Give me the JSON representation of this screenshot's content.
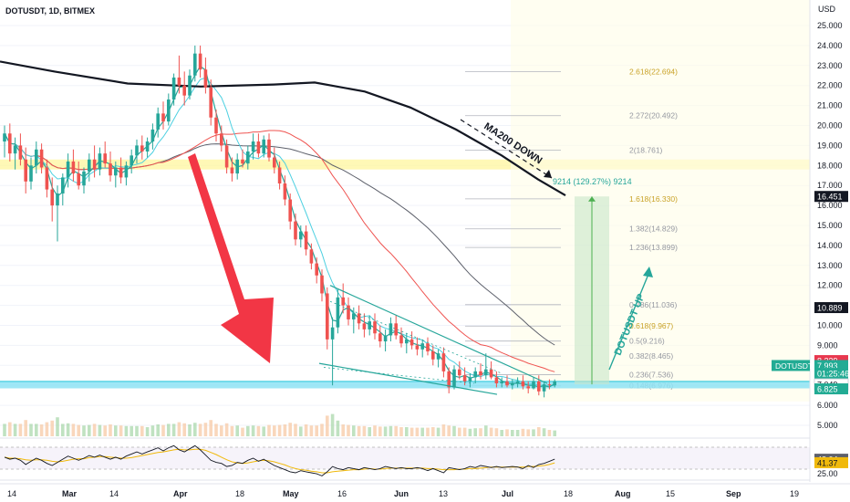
{
  "header": {
    "symbol_label": "DOTUSDT, 1D, BITMEX"
  },
  "chart_data": {
    "type": "candlestick",
    "symbol": "DOTUSDT",
    "timeframe": "1D",
    "exchange": "BITMEX",
    "currency": "USD",
    "price_axis": {
      "ticks": [
        25,
        24,
        23,
        22,
        21,
        20,
        19,
        18,
        17,
        16,
        15,
        14,
        13,
        12,
        11,
        10,
        9,
        8,
        7,
        6,
        5
      ],
      "tick_labels": [
        "25.000",
        "24.000",
        "23.000",
        "22.000",
        "21.000",
        "20.000",
        "19.000",
        "18.000",
        "17.000",
        "16.000",
        "15.000",
        "14.000",
        "13.000",
        "12.000",
        "11.000",
        "10.000",
        "9.000",
        "8.000",
        "7.000",
        "6.000",
        "5.000"
      ],
      "ylim": [
        4.5,
        25.8
      ]
    },
    "time_axis": {
      "tick_labels": [
        "14",
        "Mar",
        "14",
        "Apr",
        "18",
        "May",
        "16",
        "Jun",
        "13",
        "Jul",
        "18",
        "Aug",
        "15",
        "Sep",
        "19"
      ]
    },
    "price_badges": [
      {
        "text": "16.451",
        "value": 16.451,
        "color": "#131722"
      },
      {
        "text": "10.889",
        "value": 10.889,
        "color": "#131722"
      },
      {
        "text": "8.239",
        "value": 8.239,
        "color": "#e8384f"
      },
      {
        "text": "7.993",
        "value": 7.993,
        "color": "#22ab94",
        "prefix": "DOTUSDT"
      },
      {
        "text": "01:25:46",
        "value": 7.6,
        "color": "#22ab94"
      },
      {
        "text": "7.049",
        "value": 7.049,
        "color": "#ffffff",
        "text_color": "#131722"
      },
      {
        "text": "6.825",
        "value": 6.825,
        "color": "#22ab94"
      }
    ],
    "fibonacci_levels": [
      {
        "ratio": "2.618",
        "price": "22.694",
        "value": 22.694
      },
      {
        "ratio": "2.272",
        "price": "20.492",
        "value": 20.492
      },
      {
        "ratio": "2",
        "price": "18.761",
        "value": 18.761
      },
      {
        "ratio": "1.618",
        "price": "16.330",
        "value": 16.33
      },
      {
        "ratio": "1.382",
        "price": "14.829",
        "value": 14.829
      },
      {
        "ratio": "1.236",
        "price": "13.899",
        "value": 13.899
      },
      {
        "ratio": "0.786",
        "price": "11.036",
        "value": 11.036
      },
      {
        "ratio": "0.618",
        "price": "9.967",
        "value": 9.967
      },
      {
        "ratio": "0.5",
        "price": "9.216",
        "value": 9.216
      },
      {
        "ratio": "0.382",
        "price": "8.465",
        "value": 8.465
      },
      {
        "ratio": "0.236",
        "price": "7.536",
        "value": 7.536
      },
      {
        "ratio": "0.148",
        "price": "6.976",
        "value": 6.976
      }
    ],
    "fib_label_texts": [
      "2.618(22.694)",
      "2.272(20.492)",
      "2(18.761)",
      "1.618(16.330)",
      "1.382(14.829)",
      "1.236(13.899)",
      "0.786(11.036)",
      "0.618(9.967)",
      "0.5(9.216)",
      "0.382(8.465)",
      "0.236(7.536)",
      "0.148(6.976)"
    ],
    "annotations": {
      "ma200": "MA200 DOWN",
      "dot_up": "DOTUSDT UP",
      "measure": "9214 (129.27%) 9214"
    },
    "candles": [
      {
        "o": 19.2,
        "h": 20.0,
        "l": 18.4,
        "c": 19.6
      },
      {
        "o": 19.6,
        "h": 20.1,
        "l": 18.2,
        "c": 18.6
      },
      {
        "o": 18.6,
        "h": 19.4,
        "l": 17.8,
        "c": 19.0
      },
      {
        "o": 19.0,
        "h": 19.6,
        "l": 18.0,
        "c": 18.3
      },
      {
        "o": 18.3,
        "h": 18.9,
        "l": 16.6,
        "c": 17.2
      },
      {
        "o": 17.2,
        "h": 18.4,
        "l": 16.8,
        "c": 18.0
      },
      {
        "o": 18.0,
        "h": 19.2,
        "l": 17.6,
        "c": 18.8
      },
      {
        "o": 18.8,
        "h": 19.1,
        "l": 17.6,
        "c": 17.9
      },
      {
        "o": 17.9,
        "h": 18.3,
        "l": 16.4,
        "c": 16.8
      },
      {
        "o": 16.8,
        "h": 17.4,
        "l": 15.2,
        "c": 16.0
      },
      {
        "o": 16.0,
        "h": 17.0,
        "l": 14.2,
        "c": 16.6
      },
      {
        "o": 16.6,
        "h": 17.6,
        "l": 16.0,
        "c": 17.4
      },
      {
        "o": 17.4,
        "h": 18.6,
        "l": 16.9,
        "c": 18.2
      },
      {
        "o": 18.2,
        "h": 18.8,
        "l": 17.2,
        "c": 17.6
      },
      {
        "o": 17.6,
        "h": 18.2,
        "l": 16.8,
        "c": 17.0
      },
      {
        "o": 17.0,
        "h": 17.9,
        "l": 16.6,
        "c": 17.7
      },
      {
        "o": 17.7,
        "h": 18.6,
        "l": 17.2,
        "c": 18.3
      },
      {
        "o": 18.3,
        "h": 19.0,
        "l": 17.4,
        "c": 17.8
      },
      {
        "o": 17.8,
        "h": 18.9,
        "l": 17.5,
        "c": 18.6
      },
      {
        "o": 18.6,
        "h": 19.2,
        "l": 17.9,
        "c": 18.1
      },
      {
        "o": 18.1,
        "h": 18.7,
        "l": 17.2,
        "c": 17.5
      },
      {
        "o": 17.5,
        "h": 18.2,
        "l": 16.9,
        "c": 17.9
      },
      {
        "o": 17.9,
        "h": 18.4,
        "l": 17.1,
        "c": 17.4
      },
      {
        "o": 17.4,
        "h": 18.2,
        "l": 17.0,
        "c": 18.0
      },
      {
        "o": 18.0,
        "h": 18.8,
        "l": 17.6,
        "c": 18.5
      },
      {
        "o": 18.5,
        "h": 19.3,
        "l": 18.1,
        "c": 19.0
      },
      {
        "o": 19.0,
        "h": 19.5,
        "l": 18.3,
        "c": 18.7
      },
      {
        "o": 18.7,
        "h": 19.4,
        "l": 18.4,
        "c": 19.2
      },
      {
        "o": 19.2,
        "h": 20.1,
        "l": 18.8,
        "c": 19.8
      },
      {
        "o": 19.8,
        "h": 20.9,
        "l": 19.4,
        "c": 20.6
      },
      {
        "o": 20.6,
        "h": 21.2,
        "l": 19.8,
        "c": 20.2
      },
      {
        "o": 20.2,
        "h": 21.6,
        "l": 20.0,
        "c": 21.3
      },
      {
        "o": 21.3,
        "h": 22.6,
        "l": 21.0,
        "c": 22.4
      },
      {
        "o": 22.4,
        "h": 23.5,
        "l": 21.6,
        "c": 22.0
      },
      {
        "o": 22.0,
        "h": 22.7,
        "l": 21.0,
        "c": 21.5
      },
      {
        "o": 21.5,
        "h": 22.8,
        "l": 21.3,
        "c": 22.5
      },
      {
        "o": 22.5,
        "h": 24.0,
        "l": 22.2,
        "c": 23.6
      },
      {
        "o": 23.6,
        "h": 24.0,
        "l": 22.4,
        "c": 22.8
      },
      {
        "o": 22.8,
        "h": 23.4,
        "l": 21.6,
        "c": 21.9
      },
      {
        "o": 21.9,
        "h": 22.3,
        "l": 20.0,
        "c": 20.4
      },
      {
        "o": 20.4,
        "h": 20.8,
        "l": 19.2,
        "c": 19.6
      },
      {
        "o": 19.6,
        "h": 20.0,
        "l": 18.7,
        "c": 19.0
      },
      {
        "o": 19.0,
        "h": 19.3,
        "l": 17.6,
        "c": 17.9
      },
      {
        "o": 17.9,
        "h": 18.4,
        "l": 17.2,
        "c": 17.6
      },
      {
        "o": 17.6,
        "h": 18.6,
        "l": 17.3,
        "c": 18.3
      },
      {
        "o": 18.3,
        "h": 18.8,
        "l": 17.9,
        "c": 18.1
      },
      {
        "o": 18.1,
        "h": 19.0,
        "l": 17.8,
        "c": 18.7
      },
      {
        "o": 18.7,
        "h": 19.6,
        "l": 18.3,
        "c": 19.2
      },
      {
        "o": 19.2,
        "h": 19.6,
        "l": 18.4,
        "c": 18.6
      },
      {
        "o": 18.6,
        "h": 19.5,
        "l": 18.4,
        "c": 19.3
      },
      {
        "o": 19.3,
        "h": 19.6,
        "l": 18.2,
        "c": 18.4
      },
      {
        "o": 18.4,
        "h": 18.9,
        "l": 17.6,
        "c": 17.9
      },
      {
        "o": 17.9,
        "h": 18.2,
        "l": 16.8,
        "c": 17.1
      },
      {
        "o": 17.1,
        "h": 17.5,
        "l": 16.0,
        "c": 16.3
      },
      {
        "o": 16.3,
        "h": 16.6,
        "l": 14.8,
        "c": 15.2
      },
      {
        "o": 15.2,
        "h": 15.6,
        "l": 14.0,
        "c": 14.3
      },
      {
        "o": 14.3,
        "h": 15.0,
        "l": 13.9,
        "c": 14.7
      },
      {
        "o": 14.7,
        "h": 15.0,
        "l": 13.5,
        "c": 13.8
      },
      {
        "o": 13.8,
        "h": 14.1,
        "l": 12.8,
        "c": 13.1
      },
      {
        "o": 13.1,
        "h": 13.4,
        "l": 12.1,
        "c": 12.5
      },
      {
        "o": 12.5,
        "h": 12.8,
        "l": 11.2,
        "c": 11.6
      },
      {
        "o": 11.6,
        "h": 11.9,
        "l": 8.8,
        "c": 9.3
      },
      {
        "o": 9.3,
        "h": 10.4,
        "l": 7.0,
        "c": 9.9
      },
      {
        "o": 9.9,
        "h": 11.8,
        "l": 9.6,
        "c": 11.4
      },
      {
        "o": 11.4,
        "h": 12.1,
        "l": 10.6,
        "c": 11.0
      },
      {
        "o": 11.0,
        "h": 11.4,
        "l": 10.0,
        "c": 10.3
      },
      {
        "o": 10.3,
        "h": 10.9,
        "l": 9.6,
        "c": 10.6
      },
      {
        "o": 10.6,
        "h": 11.0,
        "l": 9.8,
        "c": 10.1
      },
      {
        "o": 10.1,
        "h": 10.6,
        "l": 9.4,
        "c": 9.8
      },
      {
        "o": 9.8,
        "h": 10.5,
        "l": 9.5,
        "c": 10.2
      },
      {
        "o": 10.2,
        "h": 10.6,
        "l": 9.3,
        "c": 9.6
      },
      {
        "o": 9.6,
        "h": 10.0,
        "l": 8.9,
        "c": 9.2
      },
      {
        "o": 9.2,
        "h": 9.8,
        "l": 8.7,
        "c": 9.5
      },
      {
        "o": 9.5,
        "h": 10.4,
        "l": 9.2,
        "c": 10.1
      },
      {
        "o": 10.1,
        "h": 10.5,
        "l": 9.3,
        "c": 9.5
      },
      {
        "o": 9.5,
        "h": 9.9,
        "l": 8.9,
        "c": 9.1
      },
      {
        "o": 9.1,
        "h": 9.6,
        "l": 8.6,
        "c": 9.3
      },
      {
        "o": 9.3,
        "h": 9.7,
        "l": 8.8,
        "c": 9.0
      },
      {
        "o": 9.0,
        "h": 9.4,
        "l": 8.5,
        "c": 8.8
      },
      {
        "o": 8.8,
        "h": 9.3,
        "l": 8.4,
        "c": 9.1
      },
      {
        "o": 9.1,
        "h": 9.4,
        "l": 8.5,
        "c": 8.7
      },
      {
        "o": 8.7,
        "h": 9.0,
        "l": 8.0,
        "c": 8.3
      },
      {
        "o": 8.3,
        "h": 8.8,
        "l": 7.9,
        "c": 8.6
      },
      {
        "o": 8.6,
        "h": 8.9,
        "l": 7.4,
        "c": 7.7
      },
      {
        "o": 7.7,
        "h": 7.9,
        "l": 6.6,
        "c": 6.9
      },
      {
        "o": 6.9,
        "h": 8.0,
        "l": 6.8,
        "c": 7.8
      },
      {
        "o": 7.8,
        "h": 8.2,
        "l": 7.3,
        "c": 7.5
      },
      {
        "o": 7.5,
        "h": 7.9,
        "l": 7.0,
        "c": 7.2
      },
      {
        "o": 7.2,
        "h": 7.6,
        "l": 6.9,
        "c": 7.4
      },
      {
        "o": 7.4,
        "h": 7.9,
        "l": 7.1,
        "c": 7.7
      },
      {
        "o": 7.7,
        "h": 8.1,
        "l": 7.3,
        "c": 7.5
      },
      {
        "o": 7.5,
        "h": 8.6,
        "l": 7.3,
        "c": 7.8
      },
      {
        "o": 7.8,
        "h": 8.2,
        "l": 7.3,
        "c": 7.4
      },
      {
        "o": 7.4,
        "h": 7.7,
        "l": 6.9,
        "c": 7.1
      },
      {
        "o": 7.1,
        "h": 7.4,
        "l": 6.9,
        "c": 7.2
      },
      {
        "o": 7.2,
        "h": 7.5,
        "l": 6.9,
        "c": 7.0
      },
      {
        "o": 7.0,
        "h": 7.3,
        "l": 6.8,
        "c": 7.1
      },
      {
        "o": 7.1,
        "h": 7.4,
        "l": 6.9,
        "c": 7.2
      },
      {
        "o": 7.2,
        "h": 7.5,
        "l": 6.8,
        "c": 6.95
      },
      {
        "o": 6.95,
        "h": 7.2,
        "l": 6.6,
        "c": 6.85
      },
      {
        "o": 6.85,
        "h": 7.4,
        "l": 6.8,
        "c": 7.2
      },
      {
        "o": 7.2,
        "h": 7.5,
        "l": 6.5,
        "c": 6.7
      },
      {
        "o": 6.7,
        "h": 7.2,
        "l": 6.4,
        "c": 7.05
      },
      {
        "o": 7.05,
        "h": 7.3,
        "l": 6.8,
        "c": 7.0
      },
      {
        "o": 7.0,
        "h": 7.3,
        "l": 6.9,
        "c": 7.2
      }
    ],
    "volume_axis": {
      "tick_label": "5.000"
    },
    "rsi": {
      "axis_ticks": [
        "25.00"
      ],
      "value_badges": [
        {
          "text": "48.04",
          "value": 48.04
        },
        {
          "text": "41.37",
          "value": 41.37
        }
      ],
      "values": [
        52,
        48,
        50,
        46,
        38,
        44,
        50,
        46,
        40,
        36,
        42,
        48,
        54,
        50,
        46,
        50,
        55,
        52,
        56,
        52,
        48,
        52,
        48,
        54,
        58,
        62,
        58,
        62,
        66,
        70,
        64,
        70,
        74,
        66,
        62,
        68,
        74,
        66,
        56,
        46,
        42,
        40,
        34,
        36,
        42,
        40,
        46,
        50,
        44,
        48,
        42,
        36,
        32,
        28,
        24,
        22,
        26,
        24,
        22,
        20,
        16,
        24,
        34,
        30,
        28,
        32,
        30,
        28,
        32,
        30,
        28,
        30,
        34,
        32,
        30,
        32,
        30,
        30,
        32,
        30,
        26,
        30,
        26,
        22,
        32,
        30,
        28,
        30,
        34,
        32,
        36,
        34,
        32,
        34,
        32,
        33,
        34,
        33,
        30,
        36,
        32,
        38,
        40,
        44,
        48
      ],
      "ma_values": [
        52,
        50,
        50,
        49,
        47,
        46,
        47,
        47,
        46,
        44,
        43,
        44,
        46,
        48,
        49,
        49,
        51,
        52,
        53,
        53,
        52,
        51,
        50,
        50,
        51,
        53,
        55,
        57,
        59,
        61,
        62,
        64,
        66,
        67,
        66,
        66,
        67,
        67,
        65,
        61,
        57,
        52,
        47,
        43,
        41,
        40,
        41,
        43,
        45,
        46,
        45,
        43,
        40,
        37,
        33,
        30,
        28,
        27,
        25,
        24,
        22,
        22,
        24,
        25,
        26,
        27,
        28,
        28,
        29,
        30,
        29,
        29,
        30,
        31,
        31,
        31,
        31,
        31,
        31,
        31,
        30,
        30,
        29,
        28,
        28,
        28,
        29,
        29,
        30,
        30,
        31,
        32,
        33,
        33,
        33,
        33,
        33,
        33,
        33,
        34,
        34,
        35,
        36,
        38,
        41
      ]
    }
  }
}
